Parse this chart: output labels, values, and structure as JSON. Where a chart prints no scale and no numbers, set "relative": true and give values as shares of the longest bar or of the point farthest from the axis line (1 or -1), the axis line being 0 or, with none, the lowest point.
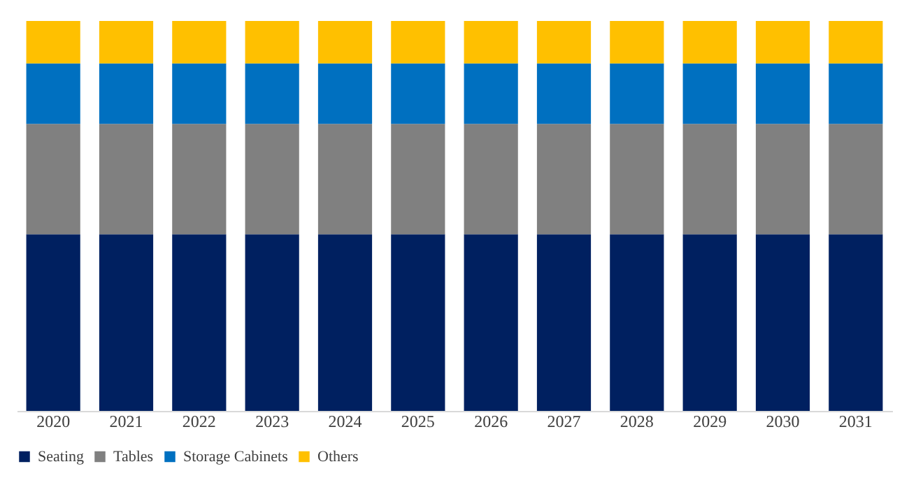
{
  "chart_data": {
    "type": "bar",
    "stacked": true,
    "relative": true,
    "legend": "bottom",
    "grid": false,
    "categories": [
      "2020",
      "2021",
      "2022",
      "2023",
      "2024",
      "2025",
      "2026",
      "2027",
      "2028",
      "2029",
      "2030",
      "2031"
    ],
    "series": [
      {
        "name": "Seating",
        "color": "#002060",
        "values": [
          0.453,
          0.453,
          0.453,
          0.453,
          0.453,
          0.453,
          0.453,
          0.453,
          0.453,
          0.453,
          0.453,
          0.453
        ]
      },
      {
        "name": "Tables",
        "color": "#808080",
        "values": [
          0.283,
          0.283,
          0.283,
          0.283,
          0.283,
          0.283,
          0.283,
          0.283,
          0.283,
          0.283,
          0.283,
          0.283
        ]
      },
      {
        "name": "Storage Cabinets",
        "color": "#0070c0",
        "values": [
          0.155,
          0.155,
          0.155,
          0.155,
          0.155,
          0.155,
          0.155,
          0.155,
          0.155,
          0.155,
          0.155,
          0.155
        ]
      },
      {
        "name": "Others",
        "color": "#ffc000",
        "values": [
          0.109,
          0.109,
          0.109,
          0.109,
          0.109,
          0.109,
          0.109,
          0.109,
          0.109,
          0.109,
          0.109,
          0.109
        ]
      }
    ]
  }
}
